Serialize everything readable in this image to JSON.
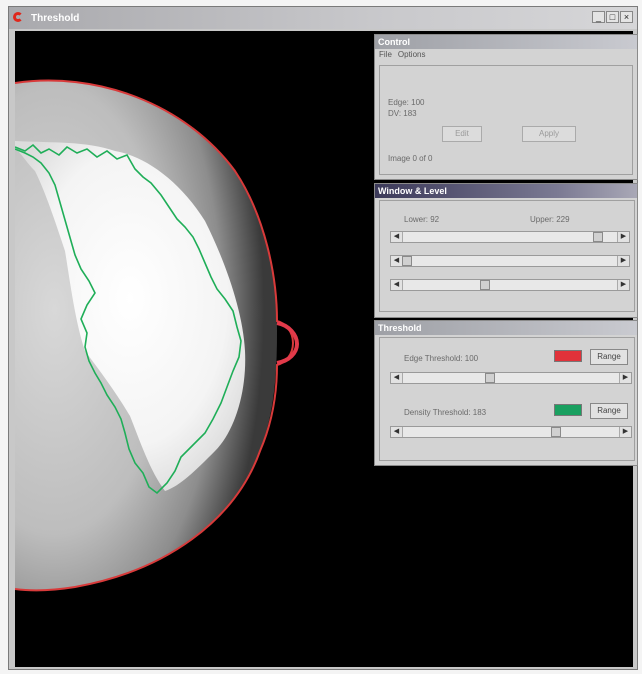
{
  "window": {
    "title": "Threshold",
    "controls": [
      "_",
      "□",
      "×"
    ]
  },
  "control_panel": {
    "title": "Control",
    "menu": [
      "File",
      "Options"
    ],
    "edge_text": "Edge: 100",
    "dv_text": "DV: 183",
    "button_1": "Edit",
    "button_2": "Apply",
    "image_text": "Image 0 of 0"
  },
  "window_level_panel": {
    "title": "Window & Level",
    "lower_label": "Lower: 92",
    "upper_label": "Upper: 229",
    "sliders": [
      {
        "level": 0.96
      },
      {
        "level": 0.0
      },
      {
        "level": 0.42
      }
    ]
  },
  "threshold_panel": {
    "title": "Threshold",
    "edge_label": "Edge Threshold: 100",
    "density_label": "Density Threshold: 183",
    "range_label": "Range",
    "edge_color": "#e0323a",
    "density_color": "#1aa060",
    "edge_slider_level": 0.4,
    "density_slider_level": 0.69
  },
  "colors": {
    "edge_contour": "#d83a3a",
    "density_contour": "#1fae58",
    "background": "#000000"
  }
}
